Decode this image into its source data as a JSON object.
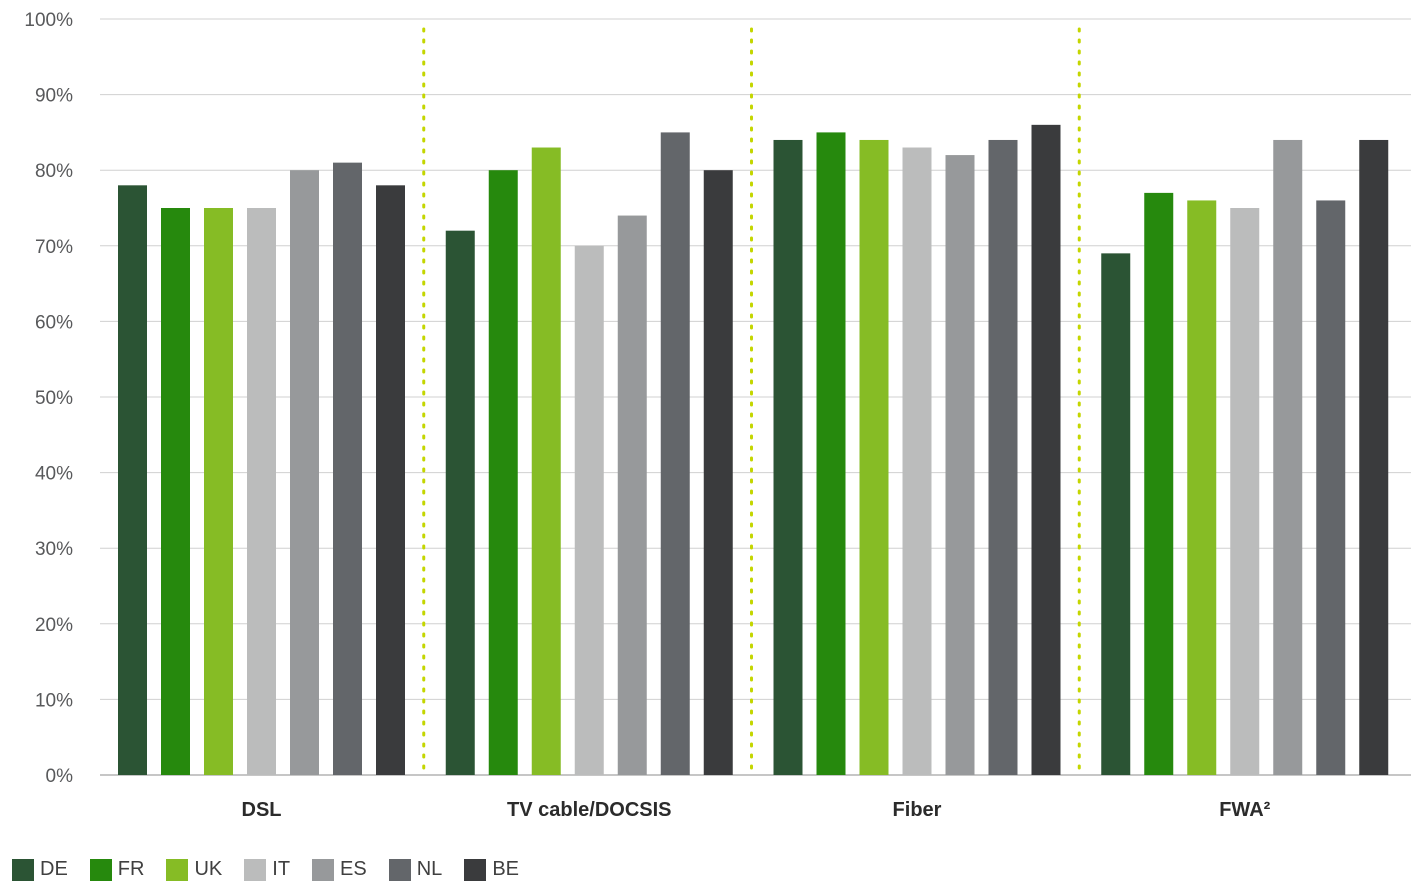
{
  "chart_data": {
    "type": "bar",
    "categories": [
      "DSL",
      "TV cable/DOCSIS",
      "Fiber",
      "FWA²"
    ],
    "series": [
      {
        "name": "DE",
        "color": "#2b5434",
        "values": [
          78,
          72,
          84,
          69
        ]
      },
      {
        "name": "FR",
        "color": "#26890d",
        "values": [
          75,
          80,
          85,
          77
        ]
      },
      {
        "name": "UK",
        "color": "#86bc25",
        "values": [
          75,
          83,
          84,
          76
        ]
      },
      {
        "name": "IT",
        "color": "#bbbcbc",
        "values": [
          75,
          70,
          83,
          75
        ]
      },
      {
        "name": "ES",
        "color": "#97999b",
        "values": [
          80,
          74,
          82,
          84
        ]
      },
      {
        "name": "NL",
        "color": "#63666a",
        "values": [
          81,
          85,
          84,
          76
        ]
      },
      {
        "name": "BE",
        "color": "#3a3b3d",
        "values": [
          78,
          80,
          86,
          84
        ]
      }
    ],
    "y_ticks": [
      "0%",
      "10%",
      "20%",
      "30%",
      "40%",
      "50%",
      "60%",
      "70%",
      "80%",
      "90%",
      "100%"
    ],
    "ylim": [
      0,
      100
    ],
    "grid": true,
    "legend_position": "bottom-left",
    "separator_color": "#c4d600"
  }
}
